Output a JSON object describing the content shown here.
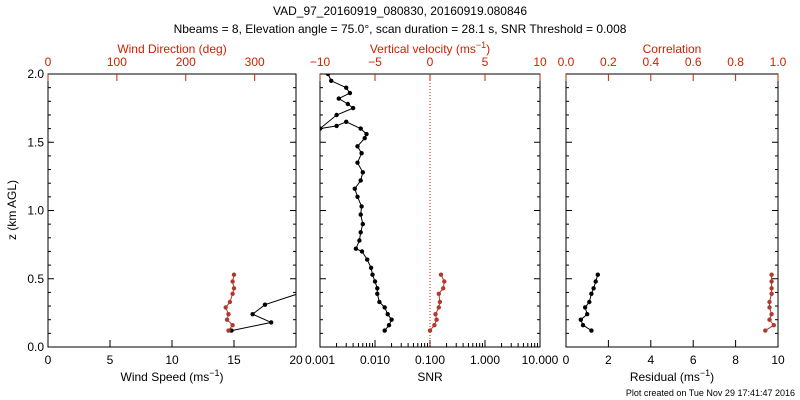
{
  "title": {
    "line1": "VAD_97_20160919_080830, 20160919.080846",
    "line2": "Nbeams = 8, Elevation angle = 75.0°, scan duration = 28.1 s, SNR Threshold = 0.008"
  },
  "footer": "Plot created on Tue Nov 29 17:41:47 2016",
  "colors": {
    "black": "#000000",
    "red": "#cc2200",
    "brown": "#b03a2e"
  },
  "chart_data": [
    {
      "type": "line",
      "ylabel": "z (km AGL)",
      "ylim": [
        0.0,
        2.0
      ],
      "yticks": [
        "0.0",
        "0.5",
        "1.0",
        "1.5",
        "2.0"
      ],
      "bottom_axis": {
        "label": "Wind Speed (ms",
        "label_sup": "−1",
        "label_suffix": ")",
        "range": [
          0,
          20
        ],
        "ticks": [
          "0",
          "5",
          "10",
          "15",
          "20"
        ]
      },
      "top_axis": {
        "label": "Wind Direction (deg)",
        "range": [
          0,
          360
        ],
        "ticks": [
          "0",
          "100",
          "200",
          "300"
        ]
      },
      "series": [
        {
          "axis": "bottom",
          "x": [
            14.8,
            18.0,
            16.5,
            17.5,
            20.5
          ],
          "y": [
            0.12,
            0.18,
            0.24,
            0.31,
            0.4
          ]
        },
        {
          "axis": "top",
          "x": [
            262,
            268,
            260,
            262,
            258,
            264,
            268,
            270,
            268,
            270
          ],
          "y": [
            0.12,
            0.16,
            0.2,
            0.24,
            0.29,
            0.33,
            0.39,
            0.43,
            0.48,
            0.53
          ]
        }
      ]
    },
    {
      "type": "line",
      "bottom_axis": {
        "label": "SNR",
        "scale": "log",
        "range": [
          0.001,
          10.0
        ],
        "ticks": [
          "0.001",
          "0.010",
          "0.100",
          "1.000",
          "10.000"
        ]
      },
      "top_axis": {
        "label": "Vertical velocity (ms",
        "label_sup": "−1",
        "label_suffix": ")",
        "range": [
          -10,
          10
        ],
        "ticks": [
          "−10",
          "−5",
          "0",
          "5",
          "10"
        ]
      },
      "series": [
        {
          "axis": "bottom",
          "x": [
            0.015,
            0.018,
            0.02,
            0.017,
            0.015,
            0.012,
            0.011,
            0.011,
            0.01,
            0.009,
            0.0085,
            0.0072,
            0.0058,
            0.0045,
            0.0052,
            0.0055,
            0.006,
            0.0055,
            0.0057,
            0.0048,
            0.0043,
            0.0055,
            0.006,
            0.0048,
            0.0057,
            0.0048,
            0.0065,
            0.007,
            0.0055,
            0.003,
            0.002,
            0.001,
            0.002,
            0.004,
            0.0032,
            0.0022,
            0.0035,
            0.003,
            0.0016,
            0.0014
          ],
          "y": [
            0.12,
            0.16,
            0.2,
            0.24,
            0.29,
            0.33,
            0.39,
            0.43,
            0.48,
            0.53,
            0.58,
            0.64,
            0.7,
            0.72,
            0.78,
            0.84,
            0.9,
            0.97,
            1.03,
            1.1,
            1.16,
            1.22,
            1.28,
            1.35,
            1.42,
            1.47,
            1.53,
            1.56,
            1.6,
            1.65,
            1.62,
            1.6,
            1.7,
            1.75,
            1.78,
            1.82,
            1.86,
            1.9,
            1.95,
            2.0
          ]
        },
        {
          "axis": "top",
          "x": [
            0.0,
            0.4,
            0.6,
            0.5,
            0.8,
            0.9,
            0.8,
            1.2,
            1.3,
            1.0
          ],
          "y": [
            0.12,
            0.16,
            0.2,
            0.24,
            0.29,
            0.33,
            0.39,
            0.43,
            0.48,
            0.53
          ]
        }
      ]
    },
    {
      "type": "line",
      "bottom_axis": {
        "label": "Residual (ms",
        "label_sup": "−1",
        "label_suffix": ")",
        "range": [
          0,
          10
        ],
        "ticks": [
          "0",
          "2",
          "4",
          "6",
          "8",
          "10"
        ]
      },
      "top_axis": {
        "label": "Correlation",
        "range": [
          0.0,
          1.0
        ],
        "ticks": [
          "0.0",
          "0.2",
          "0.4",
          "0.6",
          "0.8",
          "1.0"
        ]
      },
      "series": [
        {
          "axis": "bottom",
          "x": [
            1.2,
            0.8,
            0.7,
            1.0,
            0.9,
            1.1,
            1.2,
            1.3,
            1.4,
            1.5
          ],
          "y": [
            0.12,
            0.16,
            0.2,
            0.24,
            0.29,
            0.33,
            0.39,
            0.43,
            0.48,
            0.53
          ]
        },
        {
          "axis": "top",
          "x": [
            0.94,
            0.98,
            0.96,
            0.97,
            0.96,
            0.96,
            0.97,
            0.97,
            0.97,
            0.97
          ],
          "y": [
            0.12,
            0.16,
            0.2,
            0.24,
            0.29,
            0.33,
            0.39,
            0.43,
            0.48,
            0.53
          ]
        }
      ]
    }
  ]
}
